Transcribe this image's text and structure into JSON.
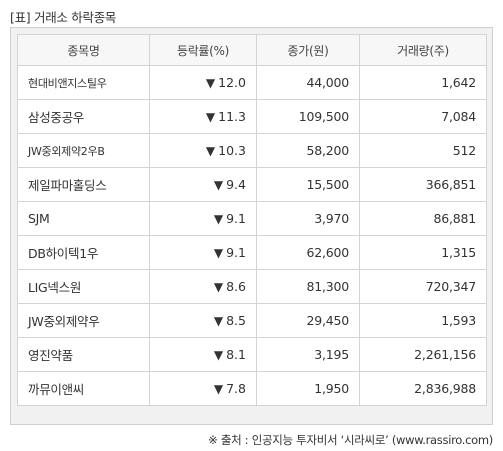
{
  "caption": "[표] 거래소 하락종목",
  "table": {
    "headers": [
      "종목명",
      "등락률(%)",
      "종가(원)",
      "거래량(주)"
    ],
    "rows": [
      {
        "name": "현대비앤지스틸우",
        "arrow": "▼",
        "change": "12.0",
        "price": "44,000",
        "volume": "1,642"
      },
      {
        "name": "삼성중공우",
        "arrow": "▼",
        "change": "11.3",
        "price": "109,500",
        "volume": "7,084"
      },
      {
        "name": "JW중외제약2우B",
        "arrow": "▼",
        "change": "10.3",
        "price": "58,200",
        "volume": "512"
      },
      {
        "name": "제일파마홀딩스",
        "arrow": "▼",
        "change": "9.4",
        "price": "15,500",
        "volume": "366,851"
      },
      {
        "name": "SJM",
        "arrow": "▼",
        "change": "9.1",
        "price": "3,970",
        "volume": "86,881"
      },
      {
        "name": "DB하이텍1우",
        "arrow": "▼",
        "change": "9.1",
        "price": "62,600",
        "volume": "1,315"
      },
      {
        "name": "LIG넥스원",
        "arrow": "▼",
        "change": "8.6",
        "price": "81,300",
        "volume": "720,347"
      },
      {
        "name": "JW중외제약우",
        "arrow": "▼",
        "change": "8.5",
        "price": "29,450",
        "volume": "1,593"
      },
      {
        "name": "영진약품",
        "arrow": "▼",
        "change": "8.1",
        "price": "3,195",
        "volume": "2,261,156"
      },
      {
        "name": "까뮤이앤씨",
        "arrow": "▼",
        "change": "7.8",
        "price": "1,950",
        "volume": "2,836,988"
      }
    ]
  },
  "footer": "※ 출처 : 인공지능 투자비서 ‘시라씨로’ (www.rassiro.com)",
  "colors": {
    "down": "#1f5fd4",
    "border": "#d4d4d4",
    "frame_bg": "#f1f1f1"
  }
}
